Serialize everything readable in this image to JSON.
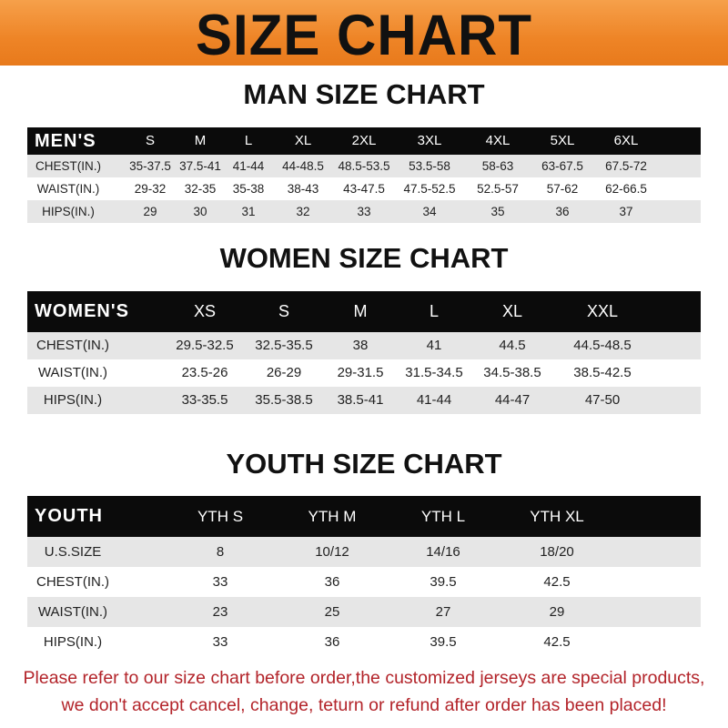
{
  "banner": {
    "title": "SIZE CHART",
    "color": "#ee8426"
  },
  "men": {
    "title": "MAN SIZE CHART",
    "header": [
      "MEN'S",
      "S",
      "M",
      "L",
      "XL",
      "2XL",
      "3XL",
      "4XL",
      "5XL",
      "6XL"
    ],
    "rows": [
      [
        "CHEST(IN.)",
        "35-37.5",
        "37.5-41",
        "41-44",
        "44-48.5",
        "48.5-53.5",
        "53.5-58",
        "58-63",
        "63-67.5",
        "67.5-72"
      ],
      [
        "WAIST(IN.)",
        "29-32",
        "32-35",
        "35-38",
        "38-43",
        "43-47.5",
        "47.5-52.5",
        "52.5-57",
        "57-62",
        "62-66.5"
      ],
      [
        "HIPS(IN.)",
        "29",
        "30",
        "31",
        "32",
        "33",
        "34",
        "35",
        "36",
        "37"
      ]
    ]
  },
  "women": {
    "title": "WOMEN SIZE CHART",
    "header": [
      "WOMEN'S",
      "XS",
      "S",
      "M",
      "L",
      "XL",
      "XXL"
    ],
    "rows": [
      [
        "CHEST(IN.)",
        "29.5-32.5",
        "32.5-35.5",
        "38",
        "41",
        "44.5",
        "44.5-48.5"
      ],
      [
        "WAIST(IN.)",
        "23.5-26",
        "26-29",
        "29-31.5",
        "31.5-34.5",
        "34.5-38.5",
        "38.5-42.5"
      ],
      [
        "HIPS(IN.)",
        "33-35.5",
        "35.5-38.5",
        "38.5-41",
        "41-44",
        "44-47",
        "47-50"
      ]
    ]
  },
  "youth": {
    "title": "YOUTH SIZE CHART",
    "header": [
      "YOUTH",
      "YTH S",
      "YTH M",
      "YTH L",
      "YTH XL"
    ],
    "rows": [
      [
        "U.S.SIZE",
        "8",
        "10/12",
        "14/16",
        "18/20"
      ],
      [
        "CHEST(IN.)",
        "33",
        "36",
        "39.5",
        "42.5"
      ],
      [
        "WAIST(IN.)",
        "23",
        "25",
        "27",
        "29"
      ],
      [
        "HIPS(IN.)",
        "33",
        "36",
        "39.5",
        "42.5"
      ]
    ]
  },
  "notice": {
    "line1": "Please refer to our size chart before order,the customized jerseys are special products,",
    "line2": "we don't accept cancel, change, teturn or refund after order has been placed!",
    "color": "#b3242a"
  }
}
